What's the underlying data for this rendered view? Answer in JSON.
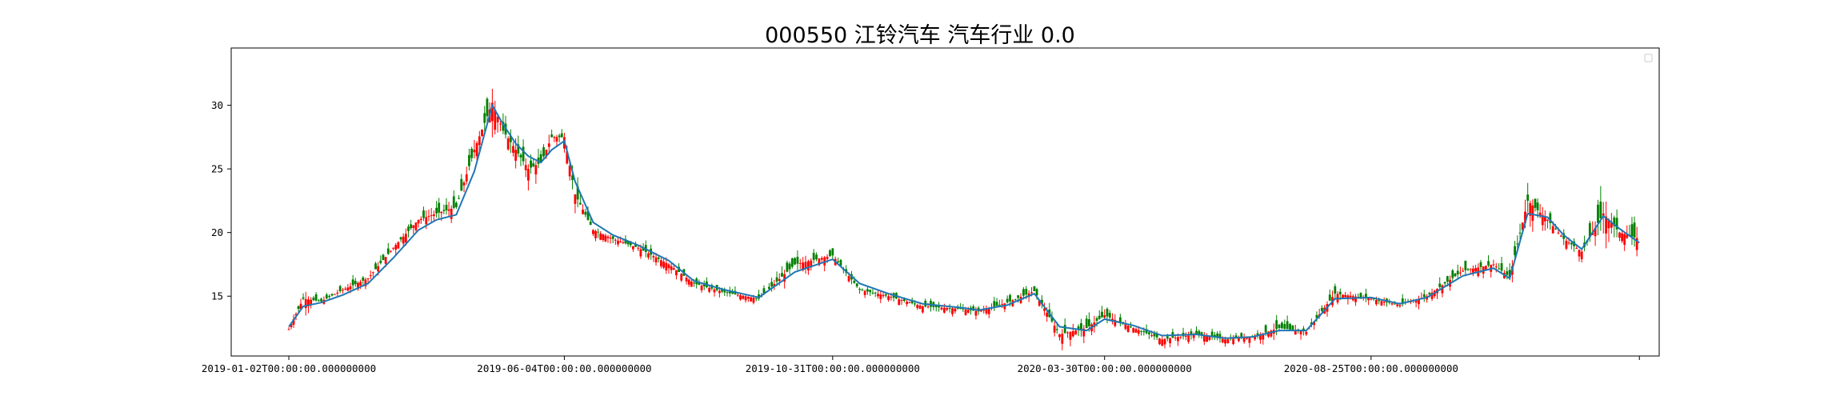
{
  "chart_data": {
    "type": "line",
    "title": "000550 江铃汽车 汽车行业 0.0",
    "xlabel": "",
    "ylabel": "",
    "x_tick_labels": [
      "2019-01-02T00:00:00.000000000",
      "2019-06-04T00:00:00.000000000",
      "2019-10-31T00:00:00.000000000",
      "2020-03-30T00:00:00.000000000",
      "2020-08-25T00:00:00.000000000",
      ""
    ],
    "x_tick_dates": [
      "2019-01-02",
      "2019-06-04",
      "2019-10-31",
      "2020-03-30",
      "2020-08-25",
      "2021-01-21"
    ],
    "xlim": [
      "2018-12-01",
      "2021-02-01"
    ],
    "y_ticks": [
      15,
      20,
      25,
      30
    ],
    "ylim": [
      10.3,
      34.5
    ],
    "grid": false,
    "legend": "top-right (empty box)",
    "colors": {
      "up": "#ff0000",
      "down": "#008000",
      "ma": "#1f77b4"
    },
    "series": [
      {
        "kind": "candlestick",
        "x": [
          "2019-01-02",
          "2019-01-10",
          "2019-01-20",
          "2019-02-01",
          "2019-02-15",
          "2019-03-01",
          "2019-03-15",
          "2019-03-25",
          "2019-04-05",
          "2019-04-15",
          "2019-04-25",
          "2019-05-01",
          "2019-05-08",
          "2019-05-15",
          "2019-05-22",
          "2019-05-28",
          "2019-06-04",
          "2019-06-10",
          "2019-06-20",
          "2019-07-01",
          "2019-07-15",
          "2019-08-01",
          "2019-08-15",
          "2019-09-01",
          "2019-09-20",
          "2019-10-10",
          "2019-10-31",
          "2019-11-15",
          "2019-12-01",
          "2019-12-20",
          "2020-01-10",
          "2020-01-20",
          "2020-02-05",
          "2020-02-20",
          "2020-03-05",
          "2020-03-20",
          "2020-03-30",
          "2020-04-15",
          "2020-05-01",
          "2020-05-20",
          "2020-06-05",
          "2020-06-20",
          "2020-07-05",
          "2020-07-20",
          "2020-08-05",
          "2020-08-25",
          "2020-09-10",
          "2020-09-25",
          "2020-10-15",
          "2020-11-01",
          "2020-11-10",
          "2020-11-20",
          "2020-12-01",
          "2020-12-10",
          "2020-12-20",
          "2021-01-01",
          "2021-01-10",
          "2021-01-21"
        ],
        "close": [
          12.4,
          14.8,
          14.6,
          15.5,
          16.4,
          18.8,
          21.0,
          21.5,
          22.0,
          26.5,
          30.2,
          28.0,
          26.5,
          25.0,
          25.5,
          27.5,
          27.5,
          23.0,
          20.2,
          19.5,
          18.8,
          17.5,
          16.0,
          15.3,
          14.8,
          17.5,
          18.2,
          15.5,
          15.0,
          14.2,
          14.0,
          13.8,
          14.5,
          15.4,
          12.0,
          12.5,
          13.5,
          12.5,
          11.6,
          12.0,
          11.6,
          11.8,
          12.5,
          12.2,
          15.2,
          14.8,
          14.3,
          15.0,
          17.0,
          17.5,
          16.5,
          22.5,
          21.0,
          19.5,
          18.5,
          21.5,
          20.0,
          19.5
        ],
        "high": [
          12.8,
          15.8,
          15.0,
          16.0,
          17.0,
          19.5,
          21.8,
          22.5,
          23.5,
          28.0,
          33.3,
          29.0,
          27.8,
          26.2,
          26.5,
          28.5,
          28.5,
          24.5,
          21.0,
          20.2,
          19.5,
          18.2,
          16.6,
          15.9,
          15.4,
          18.6,
          18.8,
          16.0,
          15.5,
          14.8,
          14.5,
          14.3,
          15.2,
          16.0,
          12.8,
          13.3,
          14.5,
          13.0,
          12.3,
          12.6,
          12.1,
          12.4,
          13.6,
          12.9,
          16.0,
          15.4,
          14.8,
          15.8,
          18.0,
          18.2,
          17.2,
          24.5,
          22.0,
          20.3,
          19.1,
          24.8,
          21.2,
          21.3
        ],
        "low": [
          12.0,
          13.9,
          14.2,
          15.0,
          15.8,
          18.0,
          20.2,
          20.8,
          21.4,
          25.5,
          29.0,
          27.0,
          25.0,
          23.5,
          24.5,
          26.5,
          26.5,
          22.0,
          19.6,
          18.9,
          18.2,
          16.9,
          15.5,
          14.9,
          14.3,
          16.8,
          17.5,
          15.0,
          14.5,
          13.7,
          13.5,
          13.3,
          14.0,
          14.8,
          11.0,
          11.6,
          12.8,
          12.0,
          11.1,
          11.5,
          11.2,
          11.3,
          12.0,
          11.7,
          14.5,
          14.3,
          13.8,
          14.5,
          16.3,
          16.9,
          15.5,
          21.2,
          20.0,
          18.8,
          17.7,
          20.5,
          19.3,
          18.4
        ]
      },
      {
        "kind": "line",
        "x": [
          "2019-01-02",
          "2019-01-10",
          "2019-01-20",
          "2019-02-01",
          "2019-02-15",
          "2019-03-01",
          "2019-03-15",
          "2019-03-25",
          "2019-04-05",
          "2019-04-15",
          "2019-04-25",
          "2019-05-01",
          "2019-05-08",
          "2019-05-15",
          "2019-05-22",
          "2019-05-28",
          "2019-06-04",
          "2019-06-10",
          "2019-06-20",
          "2019-07-01",
          "2019-07-15",
          "2019-08-01",
          "2019-08-15",
          "2019-09-01",
          "2019-09-20",
          "2019-10-10",
          "2019-10-31",
          "2019-11-15",
          "2019-12-01",
          "2019-12-20",
          "2020-01-10",
          "2020-01-20",
          "2020-02-05",
          "2020-02-20",
          "2020-03-05",
          "2020-03-20",
          "2020-03-30",
          "2020-04-15",
          "2020-05-01",
          "2020-05-20",
          "2020-06-05",
          "2020-06-20",
          "2020-07-05",
          "2020-07-20",
          "2020-08-05",
          "2020-08-25",
          "2020-09-10",
          "2020-09-25",
          "2020-10-15",
          "2020-11-01",
          "2020-11-10",
          "2020-11-20",
          "2020-12-01",
          "2020-12-10",
          "2020-12-20",
          "2021-01-01",
          "2021-01-10",
          "2021-01-21"
        ],
        "y": [
          12.6,
          14.2,
          14.5,
          15.1,
          16.0,
          18.0,
          20.2,
          21.0,
          21.4,
          24.8,
          30.0,
          28.5,
          27.0,
          26.0,
          25.5,
          26.5,
          27.2,
          24.0,
          20.8,
          19.8,
          19.0,
          17.8,
          16.2,
          15.5,
          14.9,
          16.9,
          17.9,
          16.0,
          15.2,
          14.4,
          14.1,
          13.9,
          14.3,
          15.2,
          12.6,
          12.3,
          13.2,
          12.7,
          11.9,
          12.0,
          11.7,
          11.8,
          12.3,
          12.3,
          14.8,
          14.9,
          14.4,
          14.9,
          16.6,
          17.2,
          16.4,
          21.5,
          21.2,
          19.8,
          18.7,
          21.3,
          20.3,
          19.2
        ]
      }
    ]
  }
}
